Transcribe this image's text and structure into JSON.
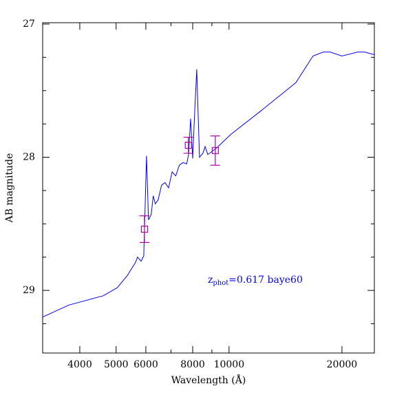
{
  "chart_data": {
    "type": "line",
    "x_label": "Wavelength (Å)",
    "y_label": "AB magnitude",
    "annotation": {
      "main": "z",
      "subscript": "phot",
      "rest": "=0.617 baye60",
      "color": "#0000ff"
    },
    "x_log": true,
    "xlim": [
      3185,
      24400
    ],
    "xticks": [
      4000,
      5000,
      6000,
      8000,
      10000,
      20000
    ],
    "xminor_ticks": [
      7000,
      9000
    ],
    "ylim": [
      29.47,
      26.99
    ],
    "yticks": [
      27,
      28,
      29
    ],
    "yminor_ticks": [
      27.25,
      27.5,
      27.75,
      28.25,
      28.5,
      28.75,
      29.25
    ],
    "spectrum": {
      "color": "#0000ff",
      "x": [
        3185,
        3740,
        4620,
        5030,
        5350,
        5630,
        5700,
        5830,
        5925,
        5975,
        6025,
        6100,
        6200,
        6280,
        6360,
        6470,
        6610,
        6750,
        6900,
        7050,
        7210,
        7370,
        7540,
        7710,
        7800,
        7900,
        8000,
        8100,
        8200,
        8340,
        8520,
        8630,
        8780,
        9270,
        10090,
        12190,
        15070,
        16740,
        17830,
        18600,
        20000,
        22030,
        23000,
        24400
      ],
      "values": [
        29.2,
        29.11,
        29.04,
        28.98,
        28.89,
        28.79,
        28.75,
        28.78,
        28.74,
        28.37,
        27.99,
        28.47,
        28.43,
        28.29,
        28.35,
        28.32,
        28.21,
        28.19,
        28.23,
        28.11,
        28.14,
        28.06,
        28.04,
        28.05,
        27.98,
        27.71,
        28.01,
        27.65,
        27.34,
        28.0,
        27.97,
        27.92,
        27.98,
        27.93,
        27.83,
        27.65,
        27.44,
        27.24,
        27.21,
        27.21,
        27.24,
        27.21,
        27.21,
        27.23
      ]
    },
    "photometry": {
      "color": "#b000b0",
      "x": [
        5950,
        7790,
        9190
      ],
      "values": [
        28.54,
        27.91,
        27.95
      ],
      "errors": [
        0.1,
        0.06,
        0.11
      ]
    }
  }
}
